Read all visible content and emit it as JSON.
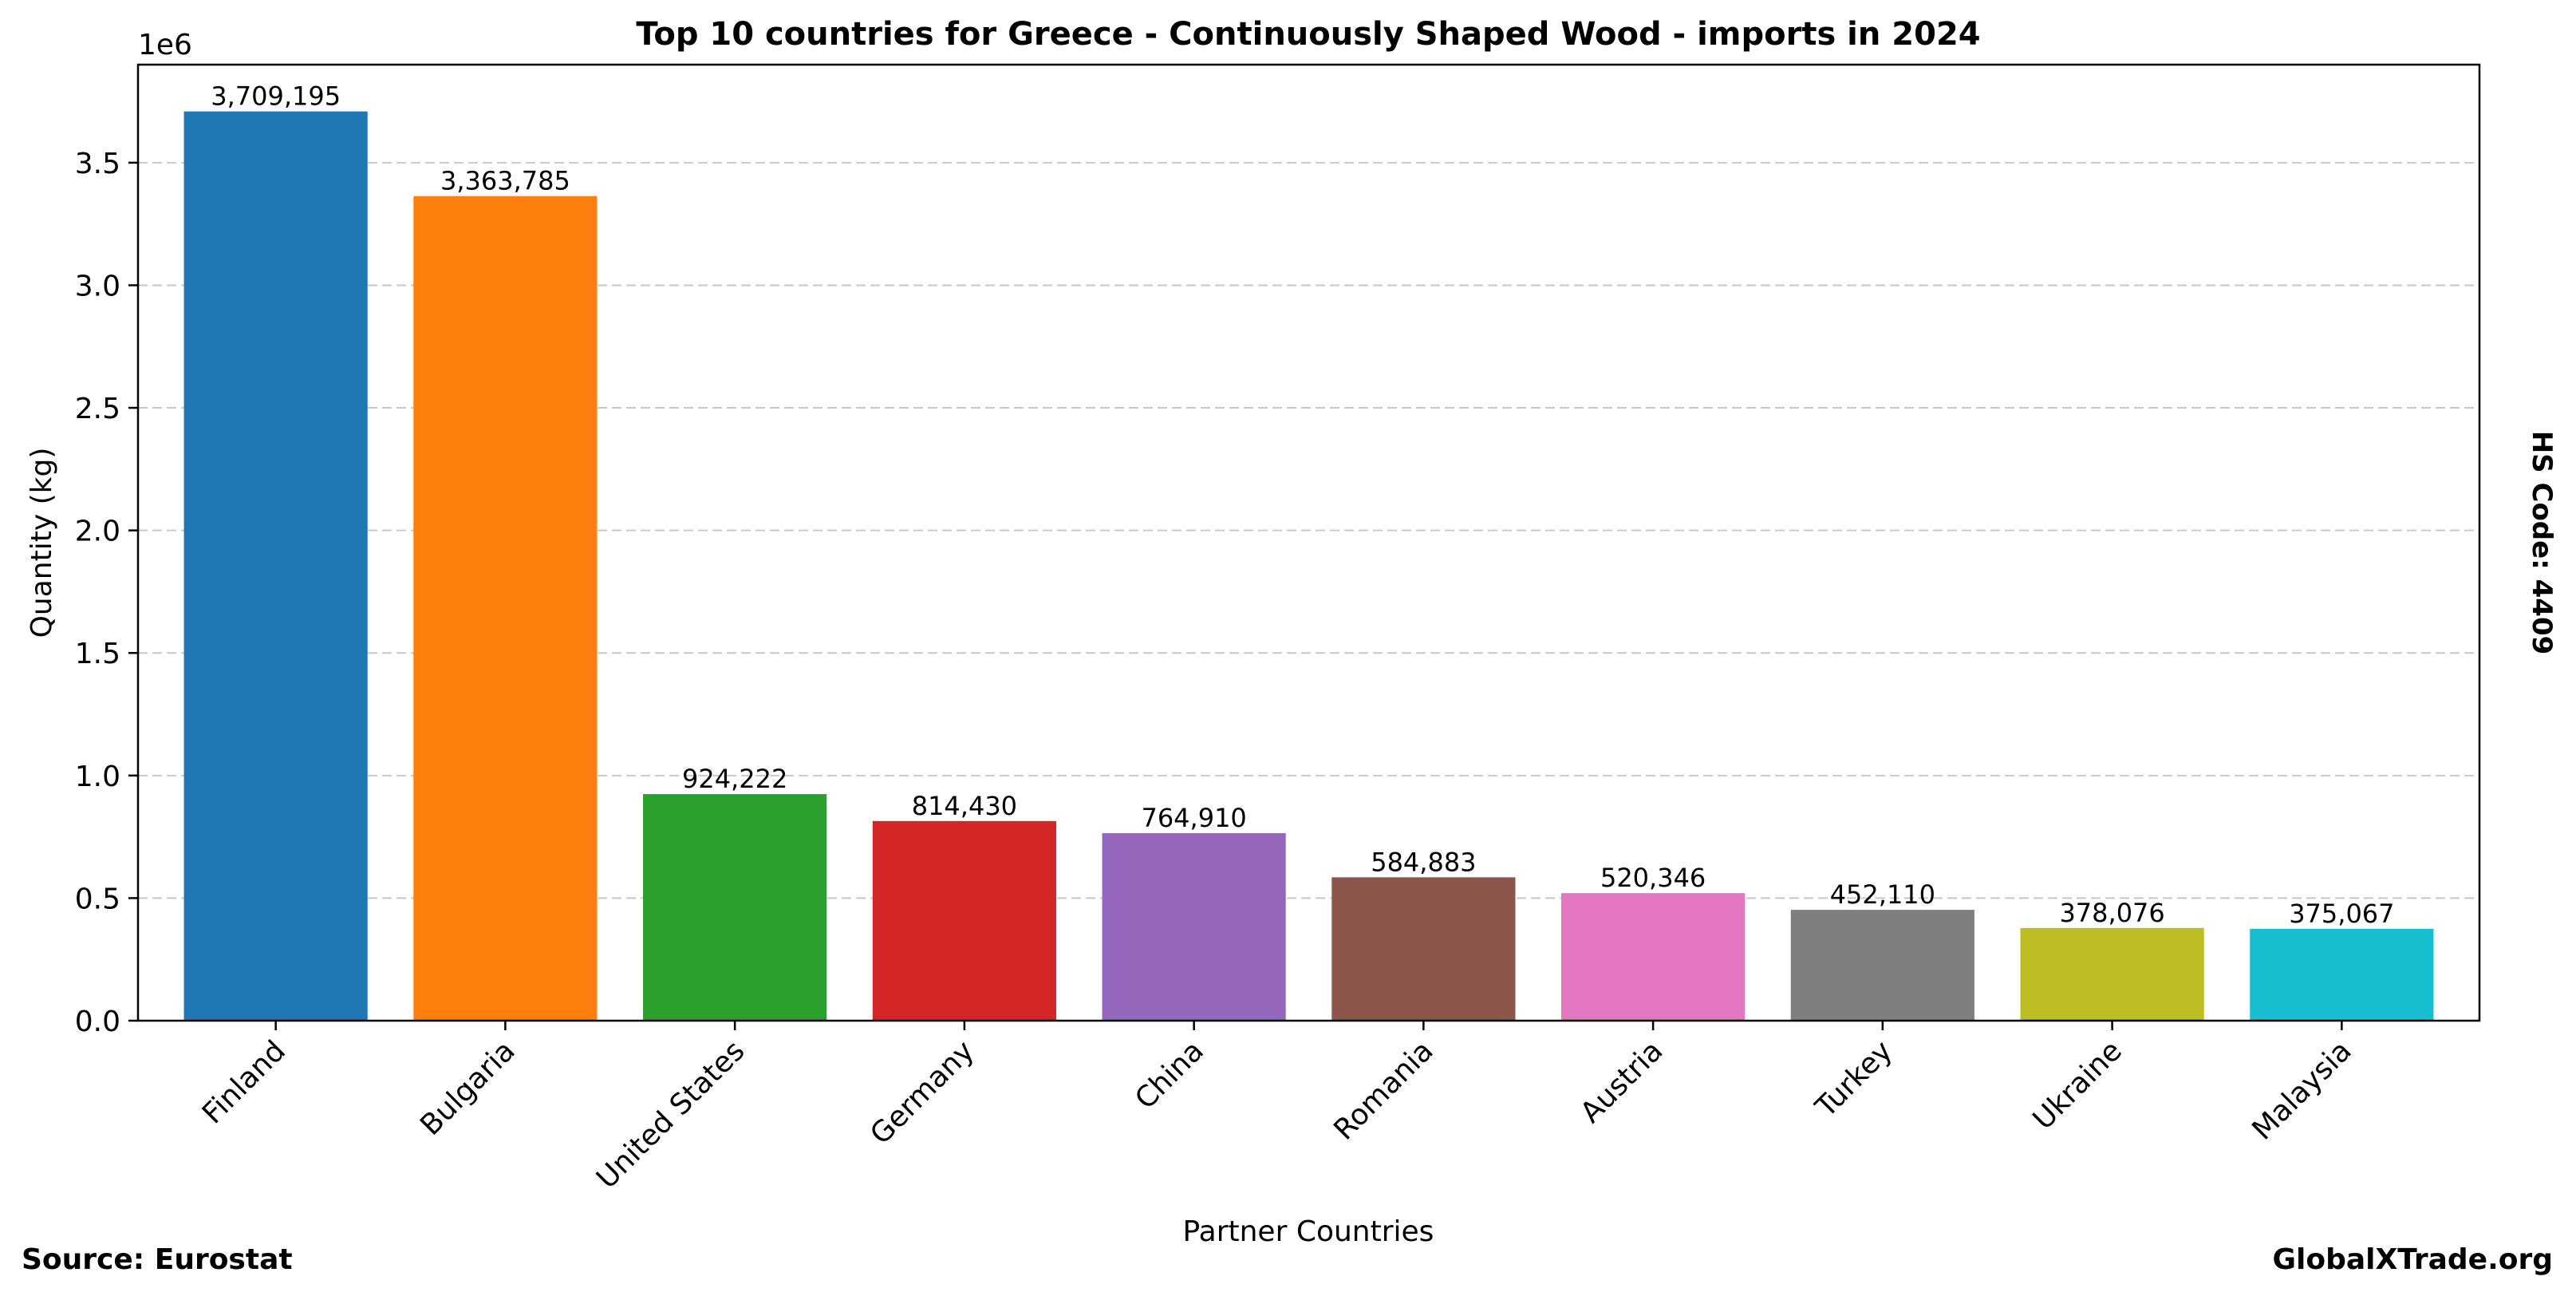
{
  "chart_data": {
    "type": "bar",
    "title": "Top 10 countries for Greece - Continuously Shaped Wood - imports in 2024",
    "xlabel": "Partner Countries",
    "ylabel": "Quantity (kg)",
    "y_offset_label": "1e6",
    "y_scale": 1000000,
    "ylim": [
      0,
      3900000
    ],
    "yticks": [
      0,
      0.5,
      1.0,
      1.5,
      2.0,
      2.5,
      3.0,
      3.5
    ],
    "ytick_labels": [
      "0.0",
      "0.5",
      "1.0",
      "1.5",
      "2.0",
      "2.5",
      "3.0",
      "3.5"
    ],
    "grid": "horizontal dashed",
    "categories": [
      "Finland",
      "Bulgaria",
      "United States",
      "Germany",
      "China",
      "Romania",
      "Austria",
      "Turkey",
      "Ukraine",
      "Malaysia"
    ],
    "values": [
      3709195,
      3363785,
      924222,
      814430,
      764910,
      584883,
      520346,
      452110,
      378076,
      375067
    ],
    "data_labels": [
      "3,709,195",
      "3,363,785",
      "924,222",
      "814,430",
      "764,910",
      "584,883",
      "520,346",
      "452,110",
      "378,076",
      "375,067"
    ],
    "colors": [
      "#1f77b4",
      "#ff7f0e",
      "#2ca02c",
      "#d62728",
      "#9467bd",
      "#8c564b",
      "#e377c2",
      "#7f7f7f",
      "#bcbd22",
      "#17becf"
    ]
  },
  "footer": {
    "source": "Source: Eurostat",
    "brand": "GlobalXTrade.org"
  },
  "side_label": "HS Code: 4409"
}
